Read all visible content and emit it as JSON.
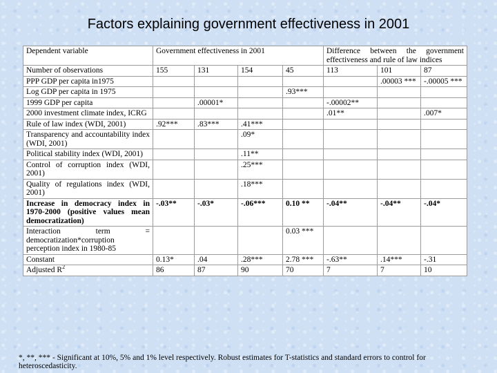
{
  "title": "Factors explaining government effectiveness in 2001",
  "table": {
    "header": {
      "dependent_label": "Dependent variable",
      "group1": "Government effectiveness in 2001",
      "group2": "Difference between the government effectiveness and rule of law indices"
    },
    "rows": [
      {
        "label": "Number of observations",
        "bold": false,
        "cells": [
          "155",
          "131",
          "154",
          "45",
          "113",
          "101",
          "87"
        ]
      },
      {
        "label": "PPP GDP per capita in1975",
        "bold": false,
        "cells": [
          "",
          "",
          "",
          "",
          "",
          ".00003 ***",
          "-.00005 ***"
        ]
      },
      {
        "label": "Log GDP per capita in 1975",
        "bold": false,
        "cells": [
          "",
          "",
          "",
          ".93***",
          "",
          "",
          ""
        ]
      },
      {
        "label": "1999 GDP per capita",
        "bold": false,
        "cells": [
          "",
          ".00001*",
          "",
          "",
          "-.00002**",
          "",
          ""
        ]
      },
      {
        "label": "2000 investment climate index, ICRG",
        "bold": false,
        "cells": [
          "",
          "",
          "",
          "",
          ".01**",
          "",
          ".007*"
        ]
      },
      {
        "label": "Rule of law index (WDI, 2001)",
        "bold": false,
        "cells": [
          ".92***",
          ".83***",
          ".41***",
          "",
          "",
          "",
          ""
        ]
      },
      {
        "label": "Transparency and accountability index (WDI, 2001)",
        "bold": false,
        "cells": [
          "",
          "",
          ".09*",
          "",
          "",
          "",
          ""
        ]
      },
      {
        "label": "Political stability index (WDI, 2001)",
        "bold": false,
        "cells": [
          "",
          "",
          ".11**",
          "",
          "",
          "",
          ""
        ]
      },
      {
        "label": "Control of corruption index (WDI, 2001)",
        "bold": false,
        "cells": [
          "",
          "",
          ".25***",
          "",
          "",
          "",
          ""
        ]
      },
      {
        "label": "Quality of regulations index (WDI, 2001)",
        "bold": false,
        "cells": [
          "",
          "",
          ".18***",
          "",
          "",
          "",
          ""
        ]
      },
      {
        "label": "Increase in democracy index in 1970-2000 (positive values mean democratization)",
        "bold": true,
        "cells": [
          "-.03**",
          "-.03*",
          "-.06***",
          "0.10 **",
          "-.04**",
          "-.04**",
          "-.04*"
        ]
      },
      {
        "label": "Interaction term = democratization*corruption perception index in 1980-85",
        "bold": false,
        "cells": [
          "",
          "",
          "",
          "0.03 ***",
          "",
          "",
          ""
        ]
      },
      {
        "label": "Constant",
        "bold": false,
        "cells": [
          "0.13*",
          ".04",
          ".28***",
          "2.78 ***",
          "-.63**",
          ".14***",
          "-.31"
        ]
      },
      {
        "label": "Adjusted R",
        "label_sup": "2",
        "bold": false,
        "cells": [
          "86",
          "87",
          "90",
          "70",
          "7",
          "7",
          "10"
        ]
      }
    ]
  },
  "note": "*, **, *** - Significant at 10%, 5% and 1% level respectively. Robust estimates for T-statistics and standard errors to control for heteroscedasticity."
}
